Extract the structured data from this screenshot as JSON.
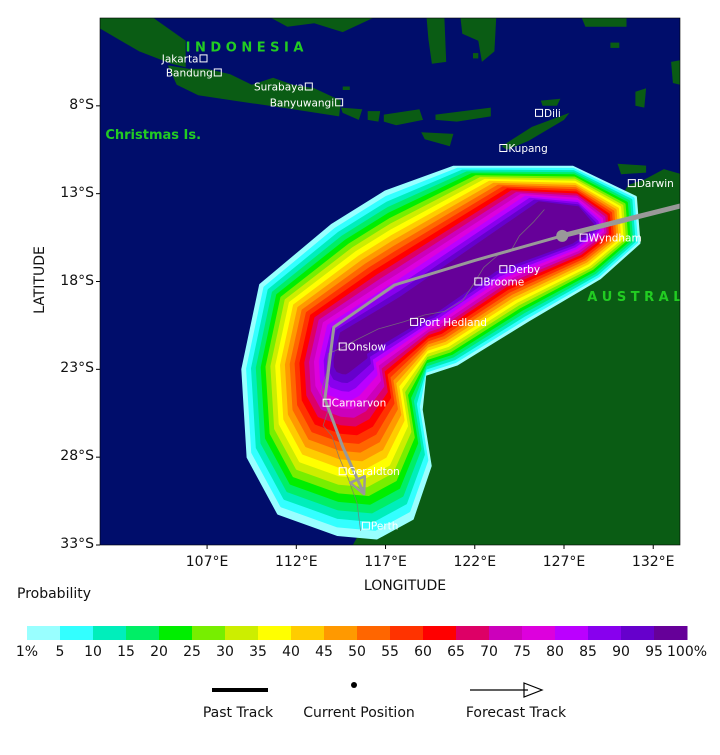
{
  "map": {
    "xlabel": "LONGITUDE",
    "ylabel": "LATITUDE",
    "lon_range": [
      101,
      133.5
    ],
    "lat_range": [
      -33,
      -3
    ],
    "x_ticks": [
      "107°E",
      "112°E",
      "117°E",
      "122°E",
      "127°E",
      "132°E"
    ],
    "x_tick_values": [
      107,
      112,
      117,
      122,
      127,
      132
    ],
    "y_ticks": [
      "8°S",
      "13°S",
      "18°S",
      "23°S",
      "28°S",
      "33°S"
    ],
    "y_tick_values": [
      -8,
      -13,
      -18,
      -23,
      -28,
      -33
    ],
    "colors": {
      "ocean": "#000d6b",
      "land": "#0a5c14",
      "track": "#999999",
      "region_label": "#22cc22"
    },
    "region_labels": [
      {
        "text": "I N D O N E S I A",
        "lon": 105.8,
        "lat": -4.9
      },
      {
        "text": "Christmas Is.",
        "lon": 101.3,
        "lat": -9.9
      },
      {
        "text": "A U S T R A L",
        "lon": 128.3,
        "lat": -19.1
      }
    ],
    "places": [
      {
        "name": "Jakarta",
        "lon": 106.8,
        "lat": -5.3,
        "side": "left"
      },
      {
        "name": "Bandung",
        "lon": 107.6,
        "lat": -6.1,
        "side": "left"
      },
      {
        "name": "Surabaya",
        "lon": 112.7,
        "lat": -6.9,
        "side": "left"
      },
      {
        "name": "Banyuwangi",
        "lon": 114.4,
        "lat": -7.8,
        "side": "left"
      },
      {
        "name": "Dili",
        "lon": 125.6,
        "lat": -8.4,
        "side": "right"
      },
      {
        "name": "Kupang",
        "lon": 123.6,
        "lat": -10.4,
        "side": "right"
      },
      {
        "name": "Darwin",
        "lon": 130.8,
        "lat": -12.4,
        "side": "right"
      },
      {
        "name": "Wyndham",
        "lon": 128.1,
        "lat": -15.5,
        "side": "right"
      },
      {
        "name": "Derby",
        "lon": 123.6,
        "lat": -17.3,
        "side": "right"
      },
      {
        "name": "Broome",
        "lon": 122.2,
        "lat": -18.0,
        "side": "right"
      },
      {
        "name": "Port Hedland",
        "lon": 118.6,
        "lat": -20.3,
        "side": "right"
      },
      {
        "name": "Onslow",
        "lon": 114.6,
        "lat": -21.7,
        "side": "right"
      },
      {
        "name": "Carnarvon",
        "lon": 113.7,
        "lat": -24.9,
        "side": "right"
      },
      {
        "name": "Geraldton",
        "lon": 114.6,
        "lat": -28.8,
        "side": "right"
      },
      {
        "name": "Perth",
        "lon": 115.9,
        "lat": -31.9,
        "side": "right"
      }
    ],
    "past_track": [
      [
        133.5,
        -13.7
      ],
      [
        126.9,
        -15.4
      ]
    ],
    "current_position": [
      126.9,
      -15.4
    ],
    "forecast_track": [
      [
        126.9,
        -15.4
      ],
      [
        122.0,
        -16.8
      ],
      [
        117.5,
        -18.2
      ],
      [
        114.1,
        -20.6
      ],
      [
        113.6,
        -24.7
      ],
      [
        114.6,
        -27.4
      ],
      [
        115.8,
        -30.1
      ]
    ]
  },
  "colorbar": {
    "title": "Probability",
    "labels": [
      "1%",
      "5",
      "10",
      "15",
      "20",
      "25",
      "30",
      "35",
      "40",
      "45",
      "50",
      "55",
      "60",
      "65",
      "70",
      "75",
      "80",
      "85",
      "90",
      "95",
      "100%"
    ],
    "colors": [
      "#99ffff",
      "#33ffff",
      "#00eebb",
      "#00ee66",
      "#00ee00",
      "#77ee00",
      "#ccee00",
      "#ffff00",
      "#ffcc00",
      "#ff9900",
      "#ff6600",
      "#ff3300",
      "#ff0000",
      "#dd0066",
      "#cc00bb",
      "#dd00dd",
      "#bb00ff",
      "#8800ee",
      "#6600cc",
      "#660099"
    ]
  },
  "legend": {
    "past_track": "Past Track",
    "current_position": "Current Position",
    "forecast_track": "Forecast Track"
  }
}
